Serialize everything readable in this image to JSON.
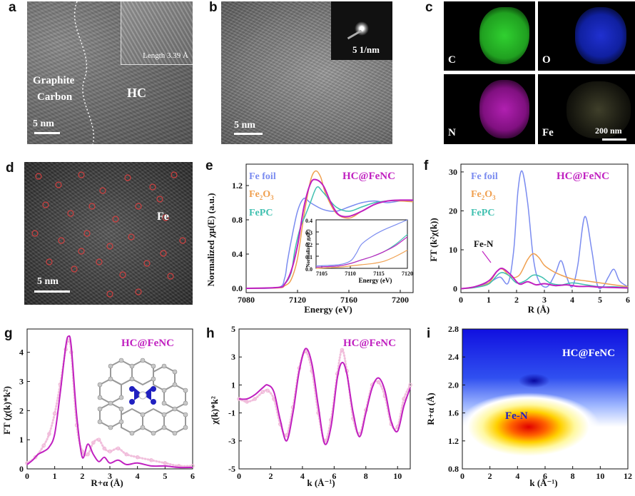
{
  "panels": {
    "a": {
      "label": "a",
      "graphite": "Graphite",
      "carbon": "Carbon",
      "hc": "HC",
      "length": "Length 3.39 Å",
      "scale": "5 nm"
    },
    "b": {
      "label": "b",
      "scale": "5 nm",
      "saed": "5 1/nm"
    },
    "c": {
      "label": "c",
      "maps": [
        "C",
        "O",
        "N",
        "Fe"
      ],
      "scale": "200 nm"
    },
    "d": {
      "label": "d",
      "element": "Fe",
      "scale": "5 nm"
    },
    "e": {
      "label": "e",
      "title": "HC@FeNC",
      "legend": [
        "Fe foil",
        "Fe2O3",
        "FePC"
      ],
      "ylabel": "Normalized χμ(E) (a.u.)",
      "xlabel": "Energy (eV)",
      "inset_xlabel": "Energy (eV)",
      "inset_ylabel": "Normalized χμ(E)"
    },
    "f": {
      "label": "f",
      "title": "HC@FeNC",
      "legend": [
        "Fe foil",
        "Fe2O3",
        "FePC"
      ],
      "annot": "Fe-N",
      "ylabel": "FT (k²χ(k))",
      "xlabel": "R (Å)"
    },
    "g": {
      "label": "g",
      "title": "HC@FeNC",
      "ylabel": "FT (χ(k)*k²)",
      "xlabel": "R+α (Å)"
    },
    "h": {
      "label": "h",
      "title": "HC@FeNC",
      "ylabel": "χ(k)*k²",
      "xlabel": "k (Å⁻¹)"
    },
    "i": {
      "label": "i",
      "title": "HC@FeNC",
      "annot": "Fe-N",
      "ylabel": "R+α (Å)",
      "xlabel": "k (Å⁻¹)"
    }
  },
  "colors": {
    "fefoil": "#7b8cf0",
    "fe2o3": "#f0a050",
    "fepc": "#40c0b0",
    "hcfenc": "#c020c0",
    "fit": "#f0b8d8"
  },
  "chart_data": [
    {
      "id": "e",
      "type": "line",
      "title": "HC@FeNC",
      "xlabel": "Energy (eV)",
      "ylabel": "Normalized χμ(E) (a.u.)",
      "xlim": [
        7080,
        7210
      ],
      "ylim": [
        -0.05,
        1.45
      ],
      "xticks": [
        7080,
        7120,
        7160,
        7200
      ],
      "yticks": [
        0.0,
        0.4,
        0.8,
        1.2
      ],
      "series": [
        {
          "name": "Fe foil",
          "color": "#7b8cf0",
          "x": [
            7080,
            7105,
            7110,
            7112,
            7115,
            7120,
            7125,
            7130,
            7140,
            7150,
            7160,
            7170,
            7180,
            7190,
            7200,
            7210
          ],
          "y": [
            0.0,
            0.01,
            0.12,
            0.3,
            0.55,
            0.9,
            1.05,
            1.0,
            0.92,
            0.9,
            0.95,
            1.0,
            1.02,
            1.0,
            1.02,
            1.02
          ]
        },
        {
          "name": "Fe2O3",
          "color": "#f0a050",
          "x": [
            7080,
            7105,
            7110,
            7115,
            7120,
            7125,
            7130,
            7134,
            7138,
            7142,
            7150,
            7160,
            7170,
            7180,
            7190,
            7200,
            7210
          ],
          "y": [
            0.0,
            0.005,
            0.03,
            0.1,
            0.35,
            0.85,
            1.25,
            1.37,
            1.3,
            1.1,
            0.88,
            0.82,
            0.9,
            0.98,
            1.02,
            1.02,
            1.01
          ]
        },
        {
          "name": "FePC",
          "color": "#40c0b0",
          "x": [
            7080,
            7105,
            7110,
            7115,
            7118,
            7122,
            7126,
            7130,
            7135,
            7140,
            7150,
            7160,
            7170,
            7180,
            7190,
            7200,
            7210
          ],
          "y": [
            0.0,
            0.01,
            0.05,
            0.18,
            0.45,
            0.7,
            0.85,
            1.0,
            1.18,
            1.12,
            0.95,
            0.9,
            0.95,
            1.0,
            1.02,
            1.03,
            1.03
          ]
        },
        {
          "name": "HC@FeNC",
          "color": "#c020c0",
          "x": [
            7080,
            7105,
            7110,
            7115,
            7120,
            7125,
            7130,
            7134,
            7140,
            7146,
            7152,
            7160,
            7170,
            7180,
            7190,
            7200,
            7210
          ],
          "y": [
            0.0,
            0.01,
            0.05,
            0.2,
            0.5,
            0.95,
            1.22,
            1.27,
            1.2,
            1.0,
            0.86,
            0.84,
            0.9,
            0.98,
            1.02,
            1.03,
            1.03
          ]
        }
      ],
      "inset": {
        "xlabel": "Energy (eV)",
        "xlim": [
          7104,
          7120
        ],
        "ylim": [
          0.0,
          0.4
        ],
        "xticks": [
          7105,
          7110,
          7115,
          7120
        ],
        "yticks": [
          0.0,
          0.1,
          0.2,
          0.3,
          0.4
        ],
        "series": [
          {
            "name": "Fe foil",
            "color": "#7b8cf0",
            "x": [
              7104,
              7108,
              7110,
              7111,
              7112,
              7114,
              7116,
              7118,
              7120
            ],
            "y": [
              0.02,
              0.03,
              0.06,
              0.12,
              0.2,
              0.27,
              0.32,
              0.36,
              0.4
            ]
          },
          {
            "name": "Fe2O3",
            "color": "#f0a050",
            "x": [
              7104,
              7108,
              7110,
              7112,
              7114,
              7116,
              7118,
              7120
            ],
            "y": [
              0.0,
              0.01,
              0.02,
              0.03,
              0.04,
              0.06,
              0.1,
              0.15
            ]
          },
          {
            "name": "FePC",
            "color": "#40c0b0",
            "x": [
              7104,
              7108,
              7110,
              7112,
              7114,
              7116,
              7118,
              7120
            ],
            "y": [
              0.01,
              0.02,
              0.04,
              0.07,
              0.1,
              0.14,
              0.2,
              0.28
            ]
          },
          {
            "name": "HC@FeNC",
            "color": "#c020c0",
            "x": [
              7104,
              7108,
              7110,
              7112,
              7114,
              7116,
              7118,
              7120
            ],
            "y": [
              0.01,
              0.02,
              0.04,
              0.07,
              0.1,
              0.14,
              0.19,
              0.26
            ]
          }
        ]
      }
    },
    {
      "id": "f",
      "type": "line",
      "title": "HC@FeNC",
      "xlabel": "R (Å)",
      "ylabel": "FT (k²χ(k))",
      "xlim": [
        0,
        6
      ],
      "ylim": [
        -1,
        32
      ],
      "xticks": [
        0,
        1,
        2,
        3,
        4,
        5,
        6
      ],
      "yticks": [
        0,
        10,
        20,
        30
      ],
      "series": [
        {
          "name": "Fe foil",
          "color": "#7b8cf0",
          "x": [
            0,
            0.5,
            1,
            1.4,
            1.7,
            1.9,
            2.05,
            2.2,
            2.4,
            2.6,
            2.8,
            3.1,
            3.4,
            3.6,
            3.8,
            4.0,
            4.2,
            4.45,
            4.7,
            4.9,
            5.1,
            5.3,
            5.5,
            5.7,
            6
          ],
          "y": [
            0,
            0.5,
            1.5,
            3,
            1.5,
            10,
            25,
            30.2,
            22,
            8,
            2,
            0.5,
            4,
            7.2,
            3,
            0.5,
            6,
            18.5,
            10,
            1,
            0.5,
            3,
            5,
            2,
            0.5
          ]
        },
        {
          "name": "Fe2O3",
          "color": "#f0a050",
          "x": [
            0,
            0.5,
            1,
            1.3,
            1.5,
            1.8,
            2.1,
            2.4,
            2.6,
            2.8,
            3.0,
            3.3,
            3.6,
            4.0,
            4.5,
            5.0,
            5.5,
            6
          ],
          "y": [
            0,
            0.3,
            1.5,
            4.5,
            5,
            3,
            3.5,
            7.5,
            9,
            8,
            6,
            4.5,
            3.5,
            2.5,
            2,
            1.5,
            1,
            0.5
          ]
        },
        {
          "name": "FePC",
          "color": "#40c0b0",
          "x": [
            0,
            0.5,
            1,
            1.4,
            1.7,
            2.0,
            2.3,
            2.6,
            2.9,
            3.2,
            3.6,
            4.0,
            4.5,
            5.0,
            5.5,
            6
          ],
          "y": [
            0,
            0.3,
            1.2,
            4,
            3.5,
            1.5,
            2,
            3.5,
            3,
            1.5,
            1,
            1.5,
            1,
            0.5,
            0.5,
            0.3
          ]
        },
        {
          "name": "HC@FeNC",
          "color": "#c020c0",
          "x": [
            0,
            0.5,
            1,
            1.3,
            1.5,
            1.8,
            2.1,
            2.4,
            2.7,
            3.0,
            3.4,
            3.8,
            4.2,
            4.6,
            5.0,
            5.5,
            6
          ],
          "y": [
            0,
            0.5,
            2,
            4.5,
            5.2,
            3.5,
            1.2,
            1.8,
            1,
            1.3,
            0.8,
            1,
            0.6,
            0.6,
            0.4,
            0.3,
            0.2
          ]
        }
      ]
    },
    {
      "id": "g",
      "type": "line",
      "title": "HC@FeNC",
      "xlabel": "R+α (Å)",
      "ylabel": "FT (χ(k)*k²)",
      "xlim": [
        0,
        6
      ],
      "ylim": [
        0,
        4.8
      ],
      "xticks": [
        0,
        1,
        2,
        3,
        4,
        5,
        6
      ],
      "yticks": [
        0,
        1,
        2,
        3,
        4
      ],
      "series": [
        {
          "name": "HC@FeNC",
          "color": "#c020c0",
          "x": [
            0,
            0.2,
            0.4,
            0.6,
            0.8,
            1.0,
            1.2,
            1.4,
            1.5,
            1.6,
            1.8,
            2.0,
            2.2,
            2.4,
            2.6,
            2.8,
            3.0,
            3.3,
            3.6,
            4.0,
            4.5,
            5.0,
            5.5,
            6
          ],
          "y": [
            0.15,
            0.3,
            0.5,
            0.6,
            0.75,
            1.2,
            2.6,
            4.2,
            4.55,
            4.2,
            1.8,
            0.4,
            0.85,
            0.5,
            0.25,
            0.4,
            0.2,
            0.3,
            0.15,
            0.2,
            0.1,
            0.1,
            0.05,
            0.05
          ]
        },
        {
          "name": "fit",
          "color": "#f0b8d8",
          "x": [
            0,
            0.3,
            0.6,
            0.8,
            1.0,
            1.2,
            1.4,
            1.5,
            1.6,
            1.8,
            2.0,
            2.2,
            2.4,
            2.6,
            2.8,
            3.0,
            3.3,
            3.6,
            4.0,
            4.5,
            5.0,
            5.5,
            6
          ],
          "y": [
            0.2,
            0.4,
            0.8,
            1.2,
            1.9,
            2.9,
            4.1,
            4.4,
            4.0,
            1.5,
            0.6,
            0.5,
            0.9,
            1.0,
            0.7,
            0.6,
            0.7,
            0.5,
            0.4,
            0.3,
            0.2,
            0.1,
            0.1
          ]
        }
      ]
    },
    {
      "id": "h",
      "type": "line",
      "title": "HC@FeNC",
      "xlabel": "k (Å⁻¹)",
      "ylabel": "χ(k)*k²",
      "xlim": [
        0,
        10.8
      ],
      "ylim": [
        -5,
        5
      ],
      "xticks": [
        0,
        2,
        4,
        6,
        8,
        10
      ],
      "yticks": [
        -5,
        -3,
        -1,
        1,
        3,
        5
      ],
      "series": [
        {
          "name": "HC@FeNC",
          "color": "#c020c0",
          "x": [
            0,
            0.5,
            1,
            1.5,
            1.8,
            2.2,
            2.6,
            3.0,
            3.4,
            3.8,
            4.2,
            4.6,
            5.0,
            5.4,
            5.8,
            6.2,
            6.5,
            6.8,
            7.2,
            7.6,
            8.0,
            8.4,
            8.8,
            9.2,
            9.6,
            10,
            10.4,
            10.8
          ],
          "y": [
            0,
            0,
            0.3,
            0.8,
            1.0,
            0.5,
            -1.5,
            -3.0,
            -1.0,
            2.0,
            3.6,
            2.5,
            -0.5,
            -3.2,
            -2.0,
            1.5,
            2.6,
            1.8,
            -1.0,
            -2.7,
            -1.0,
            0.8,
            1.5,
            0.6,
            -1.6,
            -2.3,
            -0.5,
            0.8
          ]
        },
        {
          "name": "fit",
          "color": "#f0b8d8",
          "x": [
            0,
            0.5,
            1,
            1.5,
            1.8,
            2.2,
            2.6,
            3.0,
            3.4,
            3.8,
            4.2,
            4.6,
            5.0,
            5.4,
            5.8,
            6.2,
            6.5,
            6.8,
            7.2,
            7.6,
            8.0,
            8.4,
            8.8,
            9.2,
            9.6,
            10,
            10.4,
            10.8
          ],
          "y": [
            0,
            -0.2,
            0,
            0.5,
            0.6,
            0,
            -1.8,
            -2.6,
            -0.6,
            2.2,
            3.4,
            2.0,
            -1.0,
            -3.0,
            -1.5,
            1.8,
            3.5,
            2.0,
            -1.4,
            -2.5,
            -0.8,
            1.0,
            1.2,
            0.2,
            -1.8,
            -2.0,
            0,
            1.0
          ]
        }
      ]
    },
    {
      "id": "i",
      "type": "heatmap",
      "title": "HC@FeNC",
      "xlabel": "k (Å⁻¹)",
      "ylabel": "R+α (Å)",
      "xlim": [
        0,
        12
      ],
      "ylim": [
        0.8,
        2.8
      ],
      "xticks": [
        0,
        2,
        4,
        6,
        8,
        10,
        12
      ],
      "yticks": [
        0.8,
        1.2,
        1.6,
        2.0,
        2.4,
        2.8
      ],
      "peak": {
        "k": 4.8,
        "r": 1.4
      }
    }
  ]
}
